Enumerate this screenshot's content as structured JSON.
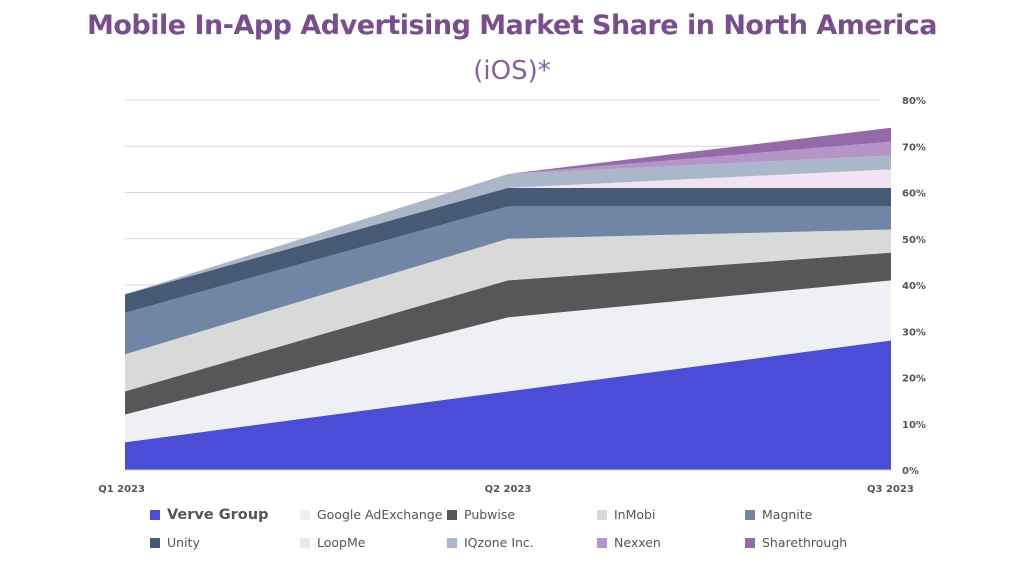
{
  "chart_data": {
    "type": "area",
    "stacked": true,
    "title": "Mobile In-App Advertising Market Share in North America",
    "subtitle": "(iOS)*",
    "categories": [
      "Q1 2023",
      "Q2 2023",
      "Q3 2023"
    ],
    "ylim": [
      0,
      80
    ],
    "yticks": [
      "0%",
      "10%",
      "20%",
      "30%",
      "40%",
      "50%",
      "60%",
      "70%",
      "80%"
    ],
    "y_axis_position": "right",
    "grid": true,
    "legend_position": "bottom",
    "series": [
      {
        "name": "Verve Group",
        "values": [
          6,
          17,
          28
        ],
        "color": "#4b4cd7"
      },
      {
        "name": "Google AdExchange",
        "values": [
          6,
          16,
          13
        ],
        "color": "#eff0f5"
      },
      {
        "name": "Pubwise",
        "values": [
          5,
          8,
          6
        ],
        "color": "#575757"
      },
      {
        "name": "InMobi",
        "values": [
          8,
          9,
          5
        ],
        "color": "#d9d9d9"
      },
      {
        "name": "Magnite",
        "values": [
          9,
          7,
          5
        ],
        "color": "#7086a4"
      },
      {
        "name": "Unity",
        "values": [
          4,
          4,
          4
        ],
        "color": "#475a75"
      },
      {
        "name": "LoopMe",
        "values": [
          0,
          0,
          4
        ],
        "color": "#f1e3ef"
      },
      {
        "name": "IQzone Inc.",
        "values": [
          0,
          3,
          3
        ],
        "color": "#aab7c9"
      },
      {
        "name": "Nexxen",
        "values": [
          0,
          0,
          3
        ],
        "color": "#b595c7"
      },
      {
        "name": "Sharethrough",
        "values": [
          0,
          0,
          3
        ],
        "color": "#946aa9"
      }
    ]
  }
}
